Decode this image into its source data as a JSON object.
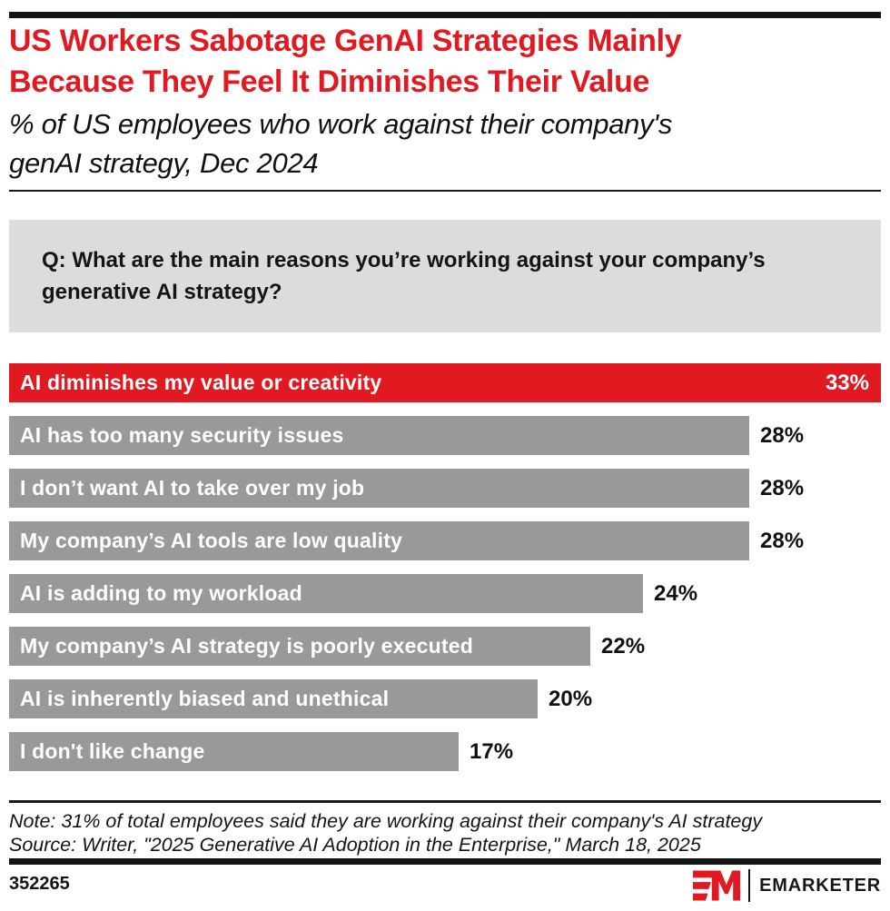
{
  "colors": {
    "red": "#e11a21",
    "gray_bar": "#999999",
    "question_bg": "#dcdcdc",
    "ink": "#141414"
  },
  "header": {
    "title_lines": [
      "US Workers Sabotage GenAI Strategies Mainly",
      "Because They Feel It Diminishes Their Value"
    ],
    "subtitle_lines": [
      "% of US employees who work against their company's",
      "genAI strategy, Dec 2024"
    ]
  },
  "question": {
    "lines": [
      "Q: What are the main reasons you’re working against your company’s",
      "generative AI strategy?"
    ]
  },
  "chart_data": {
    "type": "bar",
    "orientation": "horizontal",
    "unit": "%",
    "title": "% of US employees who work against their company's genAI strategy, Dec 2024",
    "categories": [
      "AI diminishes my value or creativity",
      "AI has too many security issues",
      "I don’t want AI to take over my job",
      "My company’s AI tools are low quality",
      "AI is adding to my workload",
      "My company’s AI strategy is poorly executed",
      "AI is inherently biased and unethical",
      "I don't like change"
    ],
    "values": [
      33,
      28,
      28,
      28,
      24,
      22,
      20,
      17
    ],
    "value_labels": [
      "33%",
      "28%",
      "28%",
      "28%",
      "24%",
      "22%",
      "20%",
      "17%"
    ],
    "highlight_index": 0,
    "xlim": [
      0,
      33
    ],
    "grid": false,
    "legend": false
  },
  "footer": {
    "note": "Note: 31% of total employees said they are working against their company's AI strategy",
    "source": "Source: Writer, \"2025 Generative AI Adoption in the Enterprise,\" March 18, 2025",
    "chart_id": "352265",
    "brand": "EMARKETER"
  }
}
